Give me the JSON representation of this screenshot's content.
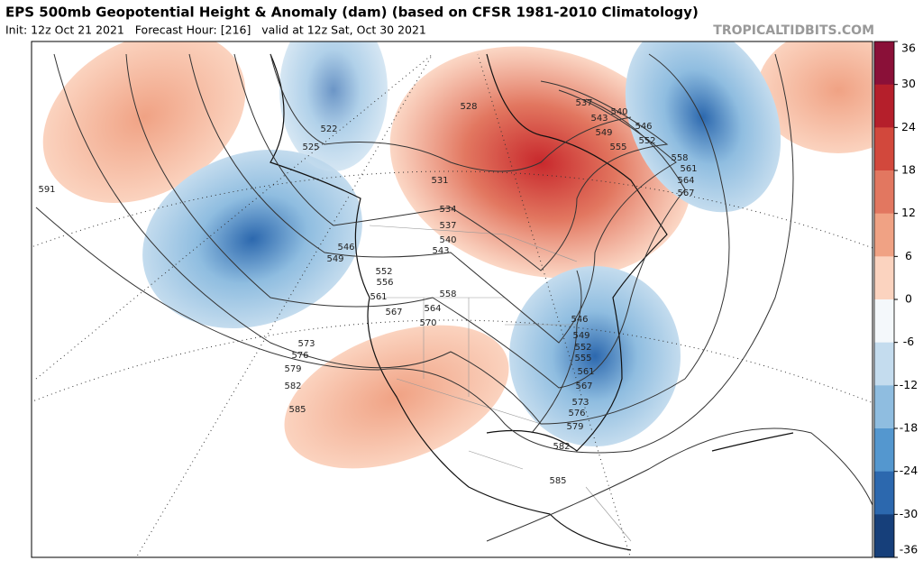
{
  "header": {
    "title": "EPS 500mb Geopotential Height & Anomaly (dam) (based on CFSR 1981-2010 Climatology)",
    "subtitle": "Init: 12z Oct 21 2021   Forecast Hour: [216]   valid at 12z Sat, Oct 30 2021",
    "watermark": "TROPICALTIDBITS.COM"
  },
  "colorbar": {
    "ticks": [
      36,
      30,
      24,
      18,
      12,
      6,
      0,
      -6,
      -12,
      -18,
      -24,
      -30,
      -36
    ],
    "colors": [
      "#8a1038",
      "#b51f2b",
      "#d2483c",
      "#e27760",
      "#f0a284",
      "#fbd3bf",
      "#f4f8fb",
      "#c4dcee",
      "#8fbde0",
      "#5497cf",
      "#2c68ae",
      "#163f7a"
    ]
  },
  "contour_labels": [
    591,
    525,
    522,
    528,
    531,
    534,
    537,
    540,
    543,
    546,
    549,
    552,
    556,
    561,
    567,
    564,
    558,
    570,
    573,
    576,
    579,
    582,
    585,
    537,
    540,
    543,
    546,
    549,
    552,
    555,
    558,
    561,
    564,
    567,
    546,
    549,
    552,
    555,
    561,
    567,
    573,
    576,
    579,
    582,
    585
  ]
}
